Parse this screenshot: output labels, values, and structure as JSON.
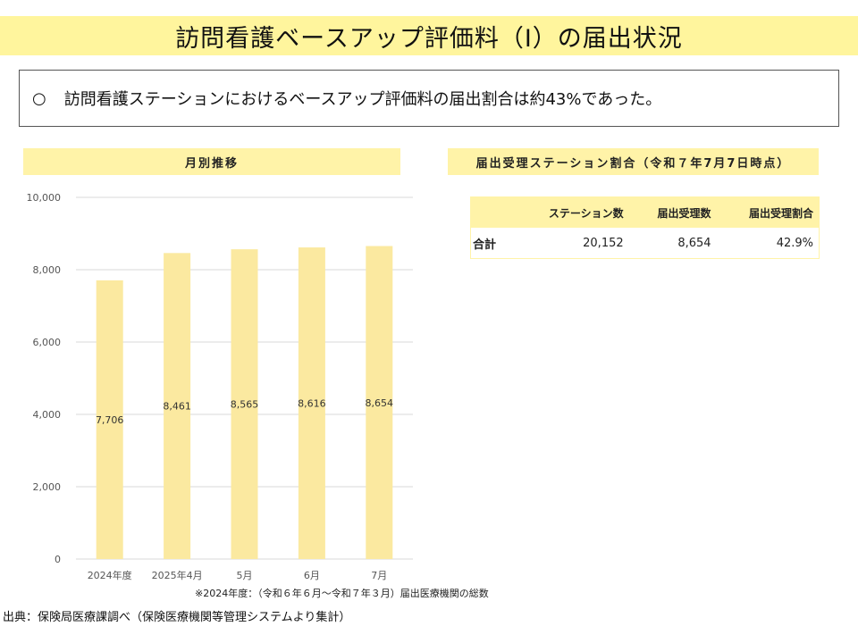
{
  "title": "訪問看護ベースアップ評価料（Ⅰ）の届出状況",
  "summary": {
    "bullet": "○",
    "text": "訪問看護ステーションにおけるベースアップ評価料の届出割合は約43%であった。"
  },
  "chart_section": {
    "header": "月別推移"
  },
  "table_section": {
    "header": "届出受理ステーション割合（令和７年7月7日時点）",
    "columns": [
      "",
      "ステーション数",
      "届出受理数",
      "届出受理割合"
    ],
    "rows": [
      {
        "label": "合計",
        "stations": "20,152",
        "accepted": "8,654",
        "ratio": "42.9%"
      }
    ]
  },
  "colors": {
    "band": "#fff59d",
    "bar": "#fbe9a0",
    "header": "#fff3a8"
  },
  "chart_data": {
    "type": "bar",
    "title": "月別推移",
    "categories": [
      "2024年度",
      "2025年4月",
      "5月",
      "6月",
      "7月"
    ],
    "values": [
      7706,
      8461,
      8565,
      8616,
      8654
    ],
    "value_labels": [
      "7,706",
      "8,461",
      "8,565",
      "8,616",
      "8,654"
    ],
    "ylim": [
      0,
      10000
    ],
    "yticks": [
      0,
      2000,
      4000,
      6000,
      8000,
      10000
    ],
    "ytick_labels": [
      "0",
      "2,000",
      "4,000",
      "6,000",
      "8,000",
      "10,000"
    ],
    "grid": true,
    "xlabel": "",
    "ylabel": ""
  },
  "note": "※2024年度：（令和６年６月～令和７年３月）届出医療機関の総数",
  "source": "出典：保険局医療課調べ（保険医療機関等管理システムより集計）"
}
